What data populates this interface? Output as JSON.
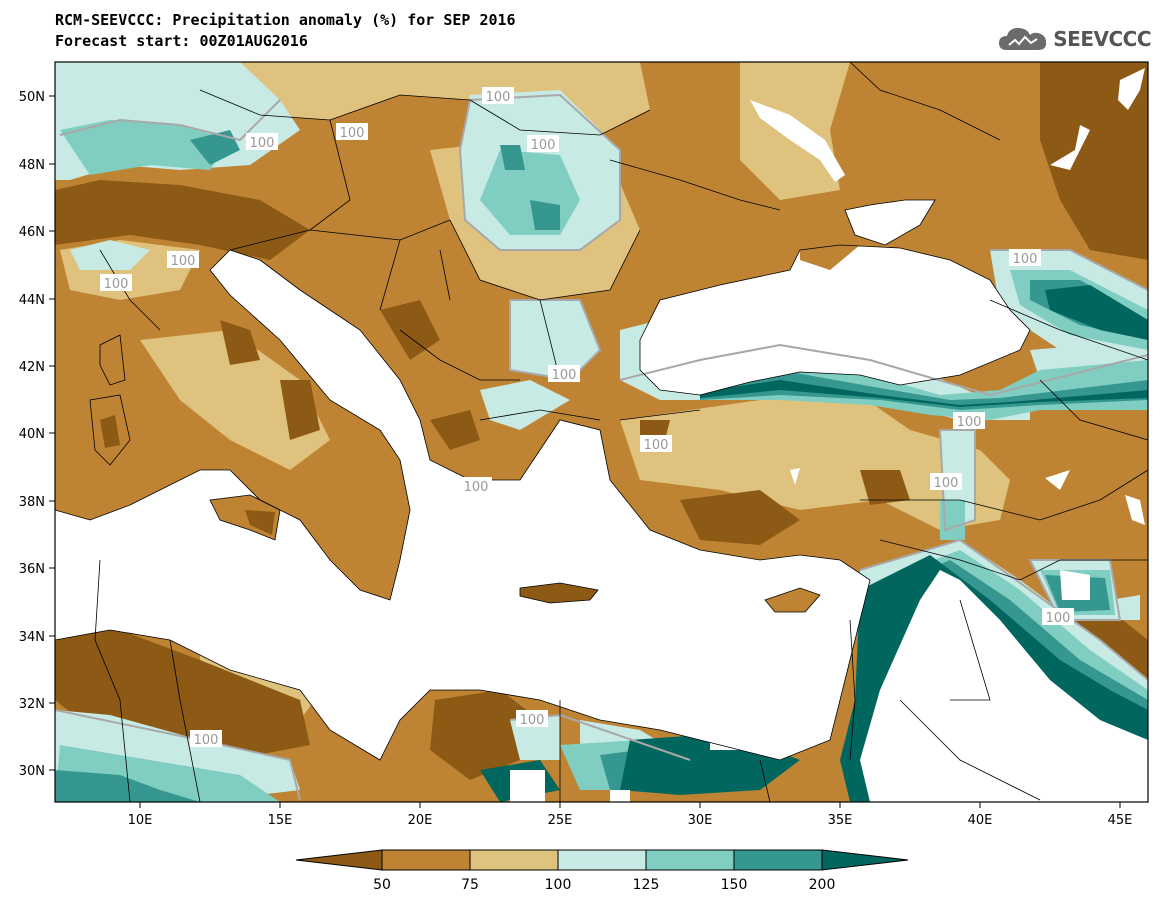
{
  "header": {
    "title_line1": "RCM-SEEVCCC: Precipitation anomaly (%) for SEP 2016",
    "title_line2": "Forecast start: 00Z01AUG2016"
  },
  "logo": {
    "text": "SEEVCCC",
    "icon": "cloud-logo-icon"
  },
  "map": {
    "lat_labels": [
      "50N",
      "48N",
      "46N",
      "44N",
      "42N",
      "40N",
      "38N",
      "36N",
      "34N",
      "32N",
      "30N"
    ],
    "lon_labels": [
      "10E",
      "15E",
      "20E",
      "25E",
      "30E",
      "35E",
      "40E",
      "45E"
    ],
    "contour_labels": [
      "100",
      "100",
      "100",
      "100",
      "100",
      "100",
      "100",
      "100",
      "100",
      "100",
      "100",
      "100",
      "100",
      "100",
      "100"
    ]
  },
  "colorbar": {
    "labels": [
      "50",
      "75",
      "100",
      "125",
      "150",
      "200"
    ],
    "colors": [
      "#8c5a14",
      "#bf8433",
      "#dfc27d",
      "#c7eae5",
      "#80cdc1",
      "#35978f",
      "#01665e"
    ]
  },
  "palette": {
    "dark_brown": "#8c5a14",
    "brown": "#bf8433",
    "tan": "#dfc27d",
    "light_teal": "#c7eae5",
    "teal": "#80cdc1",
    "dark_teal": "#35978f",
    "darkest_teal": "#01665e",
    "sea": "#ffffff"
  }
}
